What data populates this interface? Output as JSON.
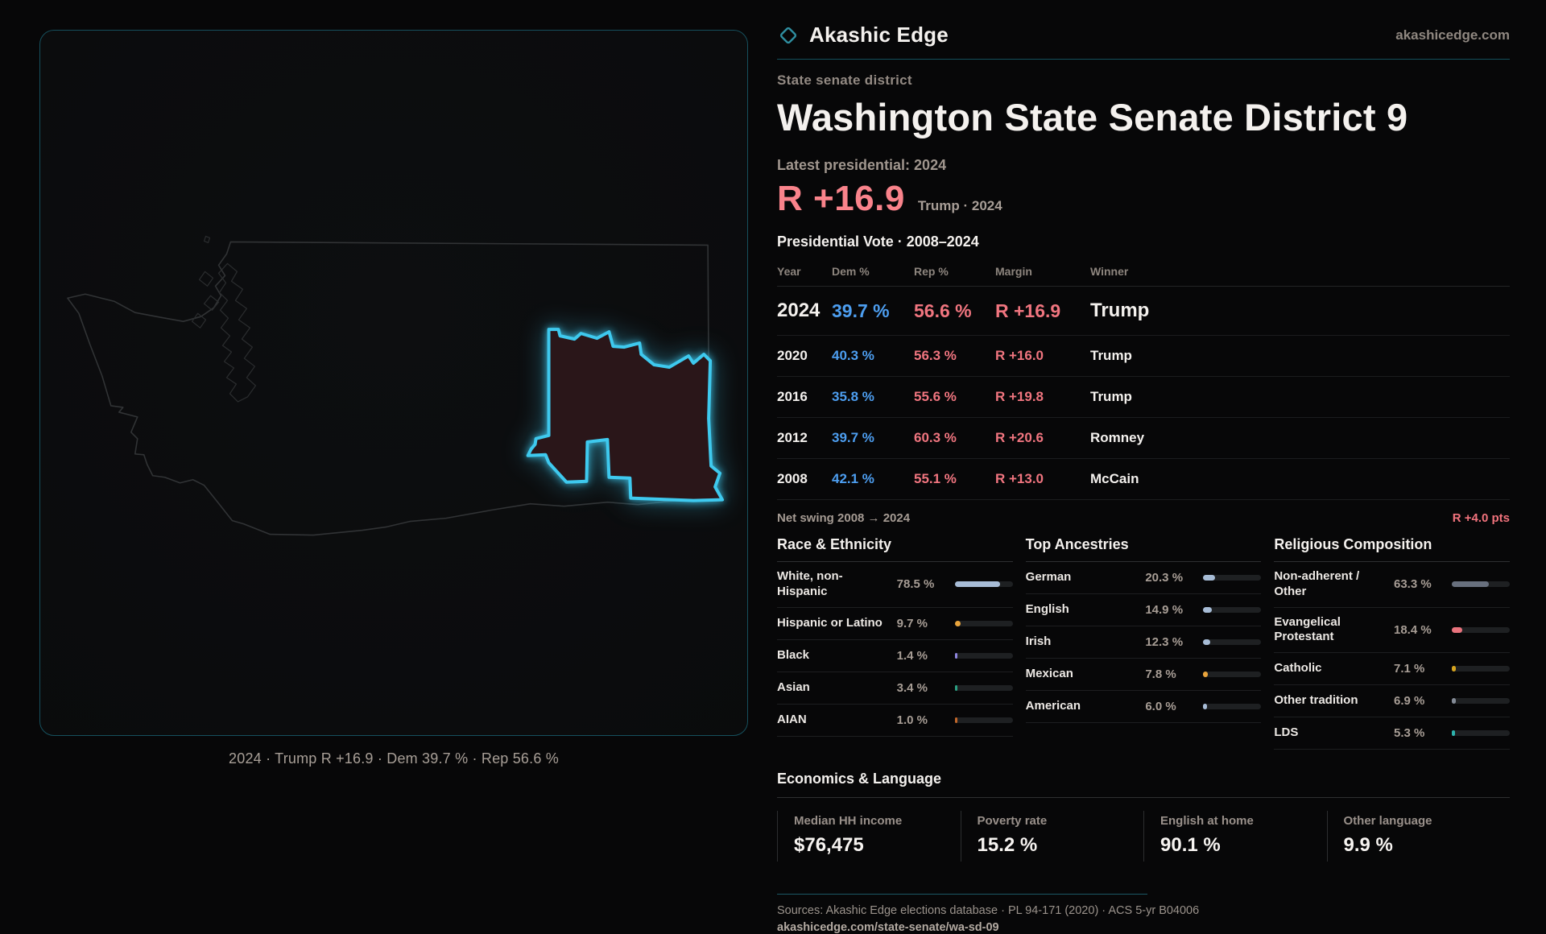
{
  "brand": {
    "name": "Akashic Edge",
    "domain": "akashicedge.com",
    "accent_teal": "#3ec9ee",
    "accent_red": "#f9838b",
    "accent_blue": "#4d9ef0"
  },
  "page": {
    "kicker": "State senate district",
    "title": "Washington State Senate District 9",
    "latest_label": "Latest presidential: 2024",
    "headline_margin": "R +16.9",
    "headline_context": "Trump · 2024",
    "table_title": "Presidential Vote · 2008–2024",
    "net_swing_label": "Net swing 2008 → 2024",
    "net_swing_value": "R +4.0 pts"
  },
  "map": {
    "caption": "2024 · Trump R +16.9 · Dem 39.7 % · Rep 56.6 %",
    "state": "Washington",
    "district_outline_color": "#3ec9ee",
    "district_fill_color": "#2a1619",
    "state_outline_color": "#313335"
  },
  "vote_table": {
    "headers": [
      "Year",
      "Dem %",
      "Rep %",
      "Margin",
      "Winner"
    ],
    "rows": [
      {
        "year": "2024",
        "dem": "39.7 %",
        "rep": "56.6 %",
        "margin": "R +16.9",
        "winner": "Trump",
        "emphasis": true
      },
      {
        "year": "2020",
        "dem": "40.3 %",
        "rep": "56.3 %",
        "margin": "R +16.0",
        "winner": "Trump",
        "emphasis": false
      },
      {
        "year": "2016",
        "dem": "35.8 %",
        "rep": "55.6 %",
        "margin": "R +19.8",
        "winner": "Trump",
        "emphasis": false
      },
      {
        "year": "2012",
        "dem": "39.7 %",
        "rep": "60.3 %",
        "margin": "R +20.6",
        "winner": "Romney",
        "emphasis": false
      },
      {
        "year": "2008",
        "dem": "42.1 %",
        "rep": "55.1 %",
        "margin": "R +13.0",
        "winner": "McCain",
        "emphasis": false
      }
    ]
  },
  "demographics": {
    "sections": [
      {
        "id": "race-ethnicity",
        "title": "Race & Ethnicity",
        "rows": [
          {
            "label": "White, non-Hispanic",
            "value": "78.5 %",
            "pct": 78.5,
            "color": "#a7bcd6"
          },
          {
            "label": "Hispanic or Latino",
            "value": "9.7 %",
            "pct": 9.7,
            "color": "#e9a43c"
          },
          {
            "label": "Black",
            "value": "1.4 %",
            "pct": 1.4,
            "color": "#8f86e0"
          },
          {
            "label": "Asian",
            "value": "3.4 %",
            "pct": 3.4,
            "color": "#2ba083"
          },
          {
            "label": "AIAN",
            "value": "1.0 %",
            "pct": 1.0,
            "color": "#c2672a"
          }
        ]
      },
      {
        "id": "top-ancestries",
        "title": "Top Ancestries",
        "rows": [
          {
            "label": "German",
            "value": "20.3 %",
            "pct": 20.3,
            "color": "#a7bcd6"
          },
          {
            "label": "English",
            "value": "14.9 %",
            "pct": 14.9,
            "color": "#a7bcd6"
          },
          {
            "label": "Irish",
            "value": "12.3 %",
            "pct": 12.3,
            "color": "#a7bcd6"
          },
          {
            "label": "Mexican",
            "value": "7.8 %",
            "pct": 7.8,
            "color": "#e9a43c"
          },
          {
            "label": "American",
            "value": "6.0 %",
            "pct": 6.0,
            "color": "#a7bcd6"
          }
        ]
      },
      {
        "id": "religious-composition",
        "title": "Religious Composition",
        "rows": [
          {
            "label": "Non-adherent / Other",
            "value": "63.3 %",
            "pct": 63.3,
            "color": "#68707e"
          },
          {
            "label": "Evangelical Protestant",
            "value": "18.4 %",
            "pct": 18.4,
            "color": "#e9737d"
          },
          {
            "label": "Catholic",
            "value": "7.1 %",
            "pct": 7.1,
            "color": "#d7a41f"
          },
          {
            "label": "Other tradition",
            "value": "6.9 %",
            "pct": 6.9,
            "color": "#848b96"
          },
          {
            "label": "LDS",
            "value": "5.3 %",
            "pct": 5.3,
            "color": "#2db3ad"
          }
        ]
      }
    ]
  },
  "economics": {
    "title": "Economics & Language",
    "cards": [
      {
        "label": "Median HH income",
        "value": "$76,475"
      },
      {
        "label": "Poverty rate",
        "value": "15.2 %"
      },
      {
        "label": "English at home",
        "value": "90.1 %"
      },
      {
        "label": "Other language",
        "value": "9.9 %"
      }
    ]
  },
  "footer": {
    "sources": "Sources: Akashic Edge elections database · PL 94-171 (2020) · ACS 5-yr B04006",
    "permalink": "akashicedge.com/state-senate/wa-sd-09"
  }
}
